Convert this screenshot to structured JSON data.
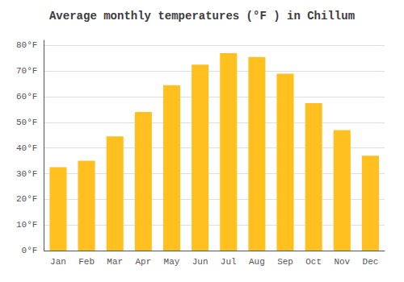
{
  "chart_data": {
    "type": "bar",
    "title": "Average monthly temperatures (°F ) in Chillum",
    "categories": [
      "Jan",
      "Feb",
      "Mar",
      "Apr",
      "May",
      "Jun",
      "Jul",
      "Aug",
      "Sep",
      "Oct",
      "Nov",
      "Dec"
    ],
    "values": [
      32.5,
      35.0,
      44.5,
      54.0,
      64.5,
      72.5,
      77.0,
      75.5,
      69.0,
      57.5,
      47.0,
      37.0
    ],
    "color": "#FFC020",
    "ylim": [
      0,
      82
    ],
    "yticks": [
      {
        "value": 0,
        "label": "0°F"
      },
      {
        "value": 10,
        "label": "10°F"
      },
      {
        "value": 20,
        "label": "20°F"
      },
      {
        "value": 30,
        "label": "30°F"
      },
      {
        "value": 40,
        "label": "40°F"
      },
      {
        "value": 50,
        "label": "50°F"
      },
      {
        "value": 60,
        "label": "60°F"
      },
      {
        "value": 70,
        "label": "70°F"
      },
      {
        "value": 80,
        "label": "80°F"
      }
    ],
    "grid": true
  }
}
